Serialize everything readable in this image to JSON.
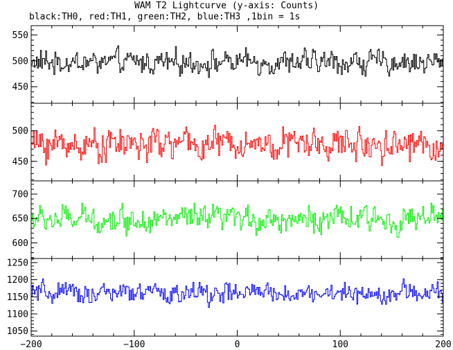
{
  "title": "WAM T2 Lightcurve (y-axis: Counts)",
  "subtitle": "black:TH0, red:TH1, green:TH2, blue:TH3 ,1bin = 1s",
  "chart_data": {
    "type": "line",
    "title": "WAM T2 Lightcurve (y-axis: Counts)",
    "subtitle": "black:TH0, red:TH1, green:TH2, blue:TH3 ,1bin = 1s",
    "xlim": [
      -200,
      200
    ],
    "x_ticks": [
      -200,
      -100,
      0,
      100,
      200
    ],
    "x_tick_labels": [
      "−200",
      "−100",
      "0",
      "100",
      "200"
    ],
    "bin_seconds": 1,
    "grid": false,
    "colors": {
      "TH0": "#000000",
      "TH1": "#ff0000",
      "TH2": "#00ee00",
      "TH3": "#0000ff"
    },
    "series": [
      {
        "name": "TH0",
        "color": "#000000",
        "mean": 497,
        "amplitude": 55,
        "ylim": [
          418,
          568
        ],
        "y_ticks": [
          450,
          500,
          550
        ],
        "y_tick_labels": [
          "450",
          "500",
          "550"
        ]
      },
      {
        "name": "TH1",
        "color": "#ff0000",
        "mean": 478,
        "amplitude": 62,
        "ylim": [
          418,
          545
        ],
        "y_ticks": [
          450,
          500
        ],
        "y_tick_labels": [
          "450",
          "500"
        ]
      },
      {
        "name": "TH2",
        "color": "#00ee00",
        "mean": 648,
        "amplitude": 65,
        "ylim": [
          568,
          727
        ],
        "y_ticks": [
          600,
          650,
          700
        ],
        "y_tick_labels": [
          "600",
          "650",
          "700"
        ]
      },
      {
        "name": "TH3",
        "color": "#0000ff",
        "mean": 1160,
        "amplitude": 75,
        "ylim": [
          1035,
          1262
        ],
        "y_ticks": [
          1050,
          1100,
          1150,
          1200,
          1250
        ],
        "y_tick_labels": [
          "1050",
          "1100",
          "1150",
          "1200",
          "1250"
        ]
      }
    ]
  }
}
